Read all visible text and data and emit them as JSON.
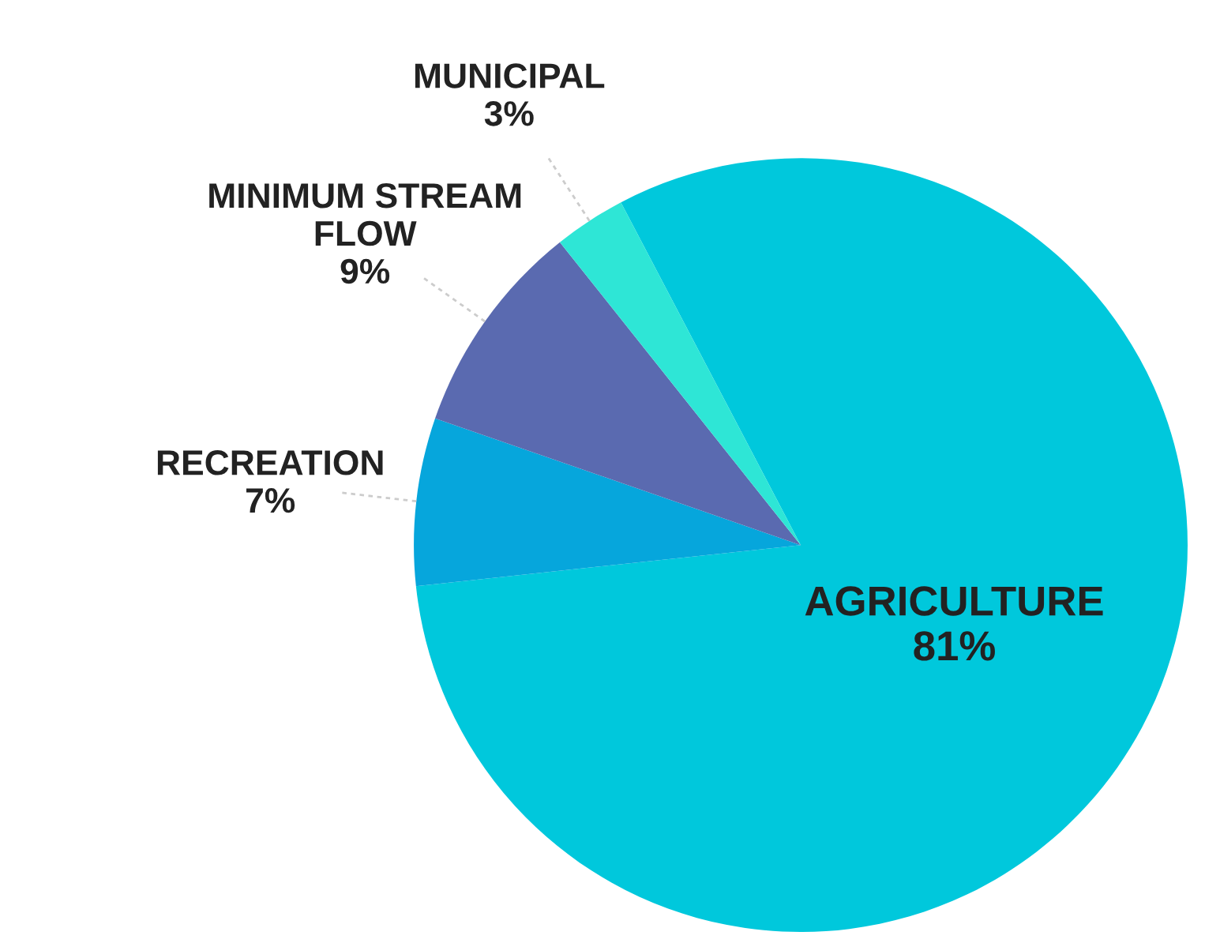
{
  "chart_data": {
    "type": "pie",
    "categories": [
      "AGRICULTURE",
      "RECREATION",
      "MINIMUM STREAM\nFLOW",
      "MUNICIPAL"
    ],
    "values": [
      81,
      7,
      9,
      3
    ],
    "value_labels": [
      "81%",
      "7%",
      "9%",
      "3%"
    ],
    "colors": [
      "#00c8dc",
      "#06a6dc",
      "#5a6ab0",
      "#2ee6d6"
    ],
    "legend": false
  }
}
